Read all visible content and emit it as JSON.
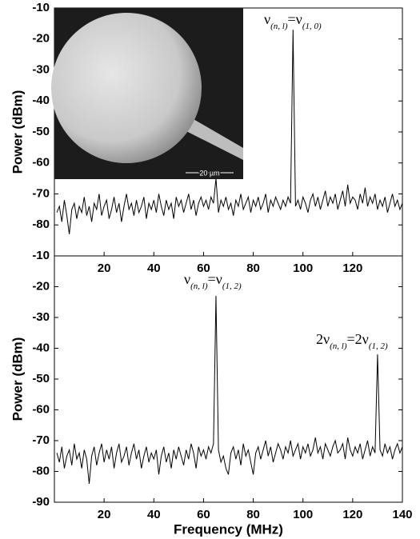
{
  "chart_data": [
    {
      "type": "line",
      "ylabel": "Power (dBm)",
      "color": "#000000",
      "xlim": [
        0,
        140
      ],
      "ylim": [
        -90,
        -10
      ],
      "xticks": [
        20,
        40,
        60,
        80,
        100,
        120
      ],
      "yticks": [
        -80,
        -70,
        -60,
        -50,
        -40,
        -30,
        -20,
        -10
      ],
      "x": [
        1,
        2,
        3,
        4,
        5,
        6,
        7,
        8,
        9,
        10,
        11,
        12,
        13,
        14,
        15,
        16,
        17,
        18,
        19,
        20,
        21,
        22,
        23,
        24,
        25,
        26,
        27,
        28,
        29,
        30,
        31,
        32,
        33,
        34,
        35,
        36,
        37,
        38,
        39,
        40,
        41,
        42,
        43,
        44,
        45,
        46,
        47,
        48,
        49,
        50,
        51,
        52,
        53,
        54,
        55,
        56,
        57,
        58,
        59,
        60,
        61,
        62,
        63,
        64,
        65,
        66,
        67,
        68,
        69,
        70,
        71,
        72,
        73,
        74,
        75,
        76,
        77,
        78,
        79,
        80,
        81,
        82,
        83,
        84,
        85,
        86,
        87,
        88,
        89,
        90,
        91,
        92,
        93,
        94,
        95,
        96,
        97,
        98,
        99,
        100,
        101,
        102,
        103,
        104,
        105,
        106,
        107,
        108,
        109,
        110,
        111,
        112,
        113,
        114,
        115,
        116,
        117,
        118,
        119,
        120,
        121,
        122,
        123,
        124,
        125,
        126,
        127,
        128,
        129,
        130,
        131,
        132,
        133,
        134,
        135,
        136,
        137,
        138,
        139,
        140
      ],
      "values": [
        -76,
        -74,
        -79,
        -72,
        -77,
        -83,
        -75,
        -73,
        -78,
        -74,
        -76,
        -71,
        -77,
        -74,
        -79,
        -73,
        -75,
        -70,
        -77,
        -74,
        -72,
        -78,
        -75,
        -71,
        -76,
        -73,
        -79,
        -74,
        -70,
        -75,
        -73,
        -77,
        -72,
        -76,
        -74,
        -71,
        -78,
        -73,
        -75,
        -72,
        -76,
        -70,
        -74,
        -77,
        -72,
        -75,
        -73,
        -78,
        -71,
        -74,
        -72,
        -76,
        -73,
        -70,
        -75,
        -72,
        -77,
        -73,
        -71,
        -74,
        -72,
        -75,
        -71,
        -73,
        -65,
        -76,
        -72,
        -74,
        -71,
        -75,
        -73,
        -77,
        -72,
        -74,
        -70,
        -75,
        -73,
        -71,
        -76,
        -72,
        -74,
        -71,
        -75,
        -73,
        -70,
        -76,
        -72,
        -74,
        -71,
        -73,
        -75,
        -72,
        -74,
        -71,
        -73,
        -17,
        -74,
        -72,
        -75,
        -71,
        -73,
        -76,
        -72,
        -70,
        -74,
        -71,
        -75,
        -72,
        -69,
        -74,
        -71,
        -73,
        -70,
        -75,
        -72,
        -69,
        -74,
        -67,
        -73,
        -71,
        -72,
        -75,
        -70,
        -73,
        -68,
        -74,
        -71,
        -73,
        -70,
        -75,
        -72,
        -74,
        -71,
        -76,
        -73,
        -70,
        -74,
        -72,
        -75,
        -73
      ],
      "annotations": [
        [
          {
            "text": "ν",
            "sub": false
          },
          {
            "text": "(n, l)",
            "sub": true
          },
          {
            "text": "=ν",
            "sub": false
          },
          {
            "text": "(1, 0)",
            "sub": true
          }
        ]
      ],
      "inset_scale_label": "20 µm"
    },
    {
      "type": "line",
      "ylabel": "Power (dBm)",
      "xlabel": "Frequency (MHz)",
      "color": "#000000",
      "xlim": [
        0,
        140
      ],
      "ylim": [
        -90,
        -10
      ],
      "xticks": [
        20,
        40,
        60,
        80,
        100,
        120,
        140
      ],
      "yticks": [
        -90,
        -80,
        -70,
        -60,
        -50,
        -40,
        -30,
        -20,
        -10
      ],
      "x": [
        1,
        2,
        3,
        4,
        5,
        6,
        7,
        8,
        9,
        10,
        11,
        12,
        13,
        14,
        15,
        16,
        17,
        18,
        19,
        20,
        21,
        22,
        23,
        24,
        25,
        26,
        27,
        28,
        29,
        30,
        31,
        32,
        33,
        34,
        35,
        36,
        37,
        38,
        39,
        40,
        41,
        42,
        43,
        44,
        45,
        46,
        47,
        48,
        49,
        50,
        51,
        52,
        53,
        54,
        55,
        56,
        57,
        58,
        59,
        60,
        61,
        62,
        63,
        64,
        65,
        66,
        67,
        68,
        69,
        70,
        71,
        72,
        73,
        74,
        75,
        76,
        77,
        78,
        79,
        80,
        81,
        82,
        83,
        84,
        85,
        86,
        87,
        88,
        89,
        90,
        91,
        92,
        93,
        94,
        95,
        96,
        97,
        98,
        99,
        100,
        101,
        102,
        103,
        104,
        105,
        106,
        107,
        108,
        109,
        110,
        111,
        112,
        113,
        114,
        115,
        116,
        117,
        118,
        119,
        120,
        121,
        122,
        123,
        124,
        125,
        126,
        127,
        128,
        129,
        130,
        131,
        132,
        133,
        134,
        135,
        136,
        137,
        138,
        139,
        140
      ],
      "values": [
        -74,
        -77,
        -72,
        -79,
        -75,
        -73,
        -78,
        -71,
        -76,
        -74,
        -79,
        -73,
        -76,
        -84,
        -75,
        -72,
        -78,
        -74,
        -71,
        -77,
        -73,
        -76,
        -72,
        -79,
        -74,
        -71,
        -77,
        -75,
        -72,
        -78,
        -74,
        -71,
        -76,
        -73,
        -79,
        -75,
        -72,
        -77,
        -74,
        -76,
        -73,
        -81,
        -75,
        -72,
        -77,
        -74,
        -79,
        -73,
        -76,
        -72,
        -75,
        -78,
        -73,
        -76,
        -71,
        -74,
        -79,
        -72,
        -75,
        -73,
        -76,
        -72,
        -74,
        -71,
        -23,
        -73,
        -77,
        -75,
        -79,
        -81,
        -74,
        -72,
        -76,
        -73,
        -78,
        -71,
        -75,
        -73,
        -77,
        -81,
        -74,
        -72,
        -76,
        -73,
        -70,
        -75,
        -72,
        -77,
        -74,
        -71,
        -73,
        -76,
        -72,
        -74,
        -70,
        -75,
        -73,
        -71,
        -76,
        -72,
        -74,
        -71,
        -75,
        -73,
        -69,
        -74,
        -72,
        -76,
        -71,
        -73,
        -75,
        -72,
        -70,
        -74,
        -73,
        -71,
        -76,
        -69,
        -73,
        -75,
        -72,
        -74,
        -71,
        -76,
        -73,
        -70,
        -75,
        -72,
        -74,
        -42,
        -73,
        -75,
        -71,
        -74,
        -72,
        -76,
        -73,
        -71,
        -74,
        -72
      ],
      "annotations": [
        [
          {
            "text": "ν",
            "sub": false
          },
          {
            "text": "(n, l)",
            "sub": true
          },
          {
            "text": "=ν",
            "sub": false
          },
          {
            "text": "(1, 2)",
            "sub": true
          }
        ],
        [
          {
            "text": "2ν",
            "sub": false
          },
          {
            "text": "(n, l)",
            "sub": true
          },
          {
            "text": "=2ν",
            "sub": false
          },
          {
            "text": "(1, 2)",
            "sub": true
          }
        ]
      ]
    }
  ]
}
